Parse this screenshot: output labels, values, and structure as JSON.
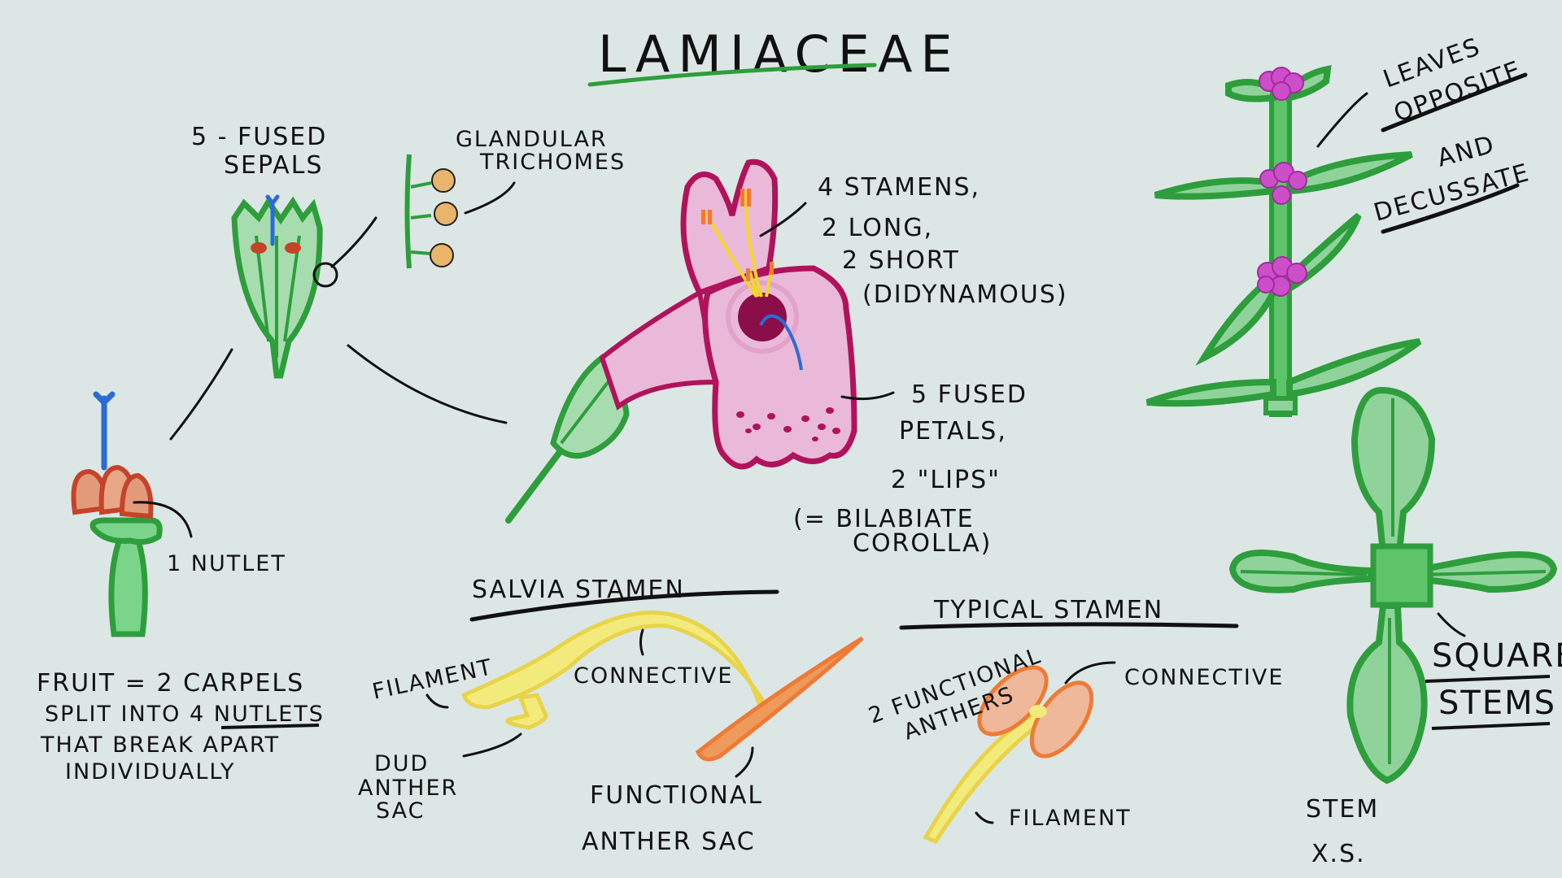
{
  "title": "LAMIACEAE",
  "colors": {
    "background": "#dce6e4",
    "ink": "#111111",
    "leaf_green": "#2e9e3c",
    "leaf_fill": "#8fd39a",
    "petal_outline": "#b0125b",
    "petal_fill": "#eab8d8",
    "flower_magenta": "#cc4fc9",
    "style_blue": "#2a6bd6",
    "anther_orange": "#ee7a35",
    "filament_yellow": "#f2ea7a",
    "nutlet_red": "#c85c3a"
  },
  "labels": {
    "fused_sepals": [
      "5 - FUSED",
      "SEPALS"
    ],
    "trichomes": [
      "GLANDULAR",
      "TRICHOMES"
    ],
    "stamens": [
      "4 STAMENS,",
      "2 LONG,",
      "2 SHORT",
      "(DIDYNAMOUS)"
    ],
    "petals": [
      "5  FUSED",
      "PETALS,",
      "2 \"LIPS\"",
      "(= BILABIATE",
      "COROLLA)"
    ],
    "leaves": [
      "LEAVES",
      "OPPOSITE",
      "AND",
      "DECUSSATE"
    ],
    "nutlet": "1 NUTLET",
    "fruit": [
      "FRUIT = 2 CARPELS",
      "SPLIT INTO 4 NUTLETS",
      "THAT BREAK APART",
      "INDIVIDUALLY"
    ],
    "salvia": {
      "heading": "SALVIA STAMEN",
      "filament": "FILAMENT",
      "connective": "CONNECTIVE",
      "dud": [
        "DUD",
        "ANTHER",
        "SAC"
      ],
      "functional": [
        "FUNCTIONAL",
        "ANTHER SAC"
      ]
    },
    "typical": {
      "heading": "TYPICAL STAMEN",
      "anthers": [
        "2 FUNCTIONAL",
        "ANTHERS"
      ],
      "connective": "CONNECTIVE",
      "filament": "FILAMENT"
    },
    "square": [
      "SQUARE",
      "STEMS"
    ],
    "stem_xs": [
      "STEM",
      "X.S."
    ]
  }
}
